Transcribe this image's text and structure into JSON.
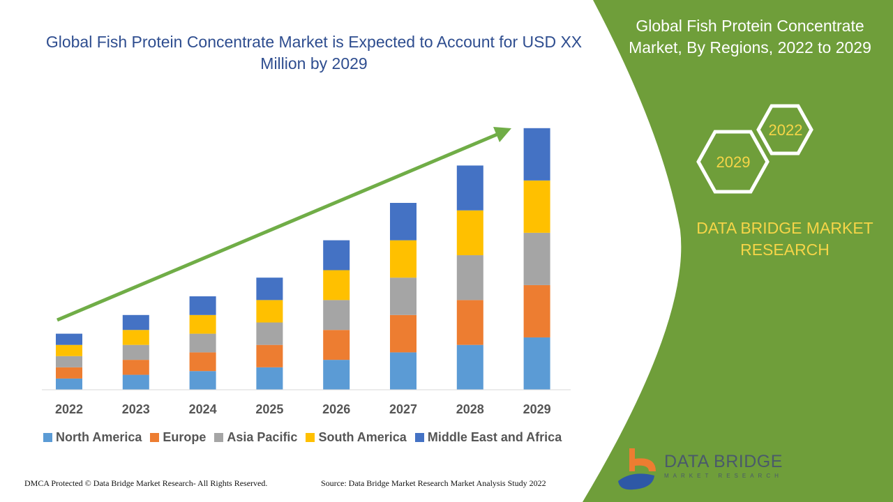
{
  "title": "Global Fish Protein Concentrate Market is Expected to Account for USD XX Million by 2029",
  "side_panel": {
    "title": "Global Fish Protein Concentrate Market, By Regions, 2022 to 2029",
    "hex_labels": [
      "2022",
      "2029"
    ],
    "brand": "DATA BRIDGE MARKET RESEARCH",
    "panel_color": "#6f9e3a"
  },
  "logo": {
    "name": "DATA BRIDGE",
    "sub": "MARKET RESEARCH"
  },
  "footer": {
    "left": "DMCA Protected © Data Bridge Market Research- All Rights Reserved.",
    "right": "Source: Data Bridge Market Research Market Analysis Study 2022"
  },
  "chart_data": {
    "type": "bar",
    "stacked": true,
    "categories": [
      "2022",
      "2023",
      "2024",
      "2025",
      "2026",
      "2027",
      "2028",
      "2029"
    ],
    "series": [
      {
        "name": "North America",
        "color": "#5b9bd5",
        "values": [
          0.6,
          0.8,
          1,
          1.2,
          1.6,
          2,
          2.4,
          2.8
        ]
      },
      {
        "name": "Europe",
        "color": "#ed7d31",
        "values": [
          0.6,
          0.8,
          1,
          1.2,
          1.6,
          2,
          2.4,
          2.8
        ]
      },
      {
        "name": "Asia Pacific",
        "color": "#a5a5a5",
        "values": [
          0.6,
          0.8,
          1,
          1.2,
          1.6,
          2,
          2.4,
          2.8
        ]
      },
      {
        "name": "South America",
        "color": "#ffc000",
        "values": [
          0.6,
          0.8,
          1,
          1.2,
          1.6,
          2,
          2.4,
          2.8
        ]
      },
      {
        "name": "Middle East and Africa",
        "color": "#4472c4",
        "values": [
          0.6,
          0.8,
          1,
          1.2,
          1.6,
          2,
          2.4,
          2.8
        ]
      }
    ],
    "legend": "bottom",
    "grid": false,
    "trend_arrow_color": "#70ad47"
  }
}
